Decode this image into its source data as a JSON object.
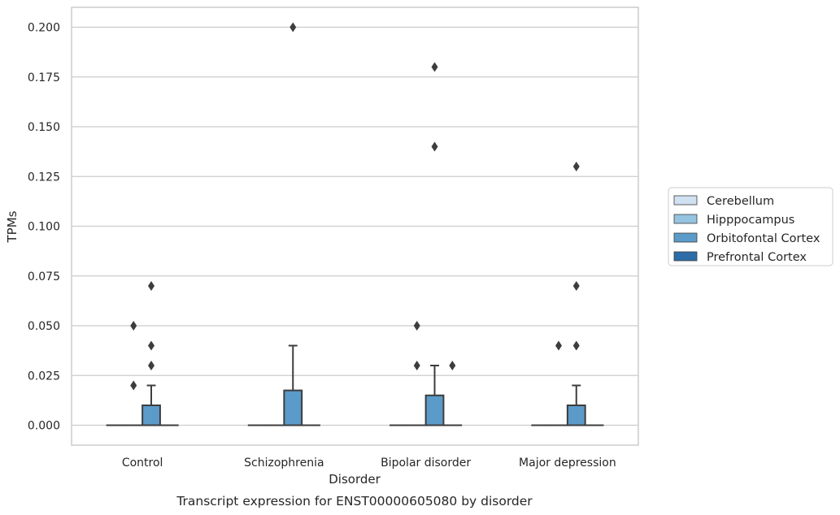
{
  "chart_data": {
    "type": "box",
    "title": "",
    "caption": "Transcript expression for ENST00000605080 by disorder",
    "xlabel": "Disorder",
    "ylabel": "TPMs",
    "ylim": [
      -0.01,
      0.21
    ],
    "yticks": [
      0.0,
      0.025,
      0.05,
      0.075,
      0.1,
      0.125,
      0.15,
      0.175,
      0.2
    ],
    "ytick_labels": [
      "0.000",
      "0.025",
      "0.050",
      "0.075",
      "0.100",
      "0.125",
      "0.150",
      "0.175",
      "0.200"
    ],
    "grid": "horizontal",
    "legend_position": "right",
    "categories": [
      "Control",
      "Schizophrenia",
      "Bipolar disorder",
      "Major depression"
    ],
    "series": [
      {
        "name": "Cerebellum",
        "color": "#d0e1f2",
        "boxes": [
          {
            "q1": 0,
            "median": 0,
            "q3": 0,
            "whislo": 0,
            "whishi": 0,
            "fliers": []
          },
          {
            "q1": 0,
            "median": 0,
            "q3": 0,
            "whislo": 0,
            "whishi": 0,
            "fliers": []
          },
          {
            "q1": 0,
            "median": 0,
            "q3": 0,
            "whislo": 0,
            "whishi": 0,
            "fliers": []
          },
          {
            "q1": 0,
            "median": 0,
            "q3": 0,
            "whislo": 0,
            "whishi": 0,
            "fliers": []
          }
        ]
      },
      {
        "name": "Hipppocampus",
        "color": "#94c4df",
        "boxes": [
          {
            "q1": 0,
            "median": 0,
            "q3": 0,
            "whislo": 0,
            "whishi": 0,
            "fliers": [
              0.02,
              0.05
            ]
          },
          {
            "q1": 0,
            "median": 0,
            "q3": 0,
            "whislo": 0,
            "whishi": 0,
            "fliers": []
          },
          {
            "q1": 0,
            "median": 0,
            "q3": 0,
            "whislo": 0,
            "whishi": 0,
            "fliers": [
              0.03,
              0.05
            ]
          },
          {
            "q1": 0,
            "median": 0,
            "q3": 0,
            "whislo": 0,
            "whishi": 0,
            "fliers": [
              0.04
            ]
          }
        ]
      },
      {
        "name": "Orbitofontal Cortex",
        "color": "#5b9bc9",
        "boxes": [
          {
            "q1": 0,
            "median": 0,
            "q3": 0.01,
            "whislo": 0,
            "whishi": 0.02,
            "fliers": [
              0.03,
              0.04,
              0.07
            ]
          },
          {
            "q1": 0,
            "median": 0,
            "q3": 0.0175,
            "whislo": 0,
            "whishi": 0.04,
            "fliers": [
              0.2
            ]
          },
          {
            "q1": 0,
            "median": 0,
            "q3": 0.015,
            "whislo": 0,
            "whishi": 0.03,
            "fliers": [
              0.14,
              0.18
            ]
          },
          {
            "q1": 0,
            "median": 0,
            "q3": 0.01,
            "whislo": 0,
            "whishi": 0.02,
            "fliers": [
              0.04,
              0.07,
              0.13
            ]
          }
        ]
      },
      {
        "name": "Prefrontal Cortex",
        "color": "#2c6ca8",
        "boxes": [
          {
            "q1": 0,
            "median": 0,
            "q3": 0,
            "whislo": 0,
            "whishi": 0,
            "fliers": []
          },
          {
            "q1": 0,
            "median": 0,
            "q3": 0,
            "whislo": 0,
            "whishi": 0,
            "fliers": []
          },
          {
            "q1": 0,
            "median": 0,
            "q3": 0,
            "whislo": 0,
            "whishi": 0,
            "fliers": [
              0.03
            ]
          },
          {
            "q1": 0,
            "median": 0,
            "q3": 0,
            "whislo": 0,
            "whishi": 0,
            "fliers": []
          }
        ]
      }
    ],
    "colors": {
      "grid": "#cccccc",
      "frame": "#cccccc",
      "box_edge": "#3d3d3d",
      "flier": "#3d3d3d"
    }
  }
}
